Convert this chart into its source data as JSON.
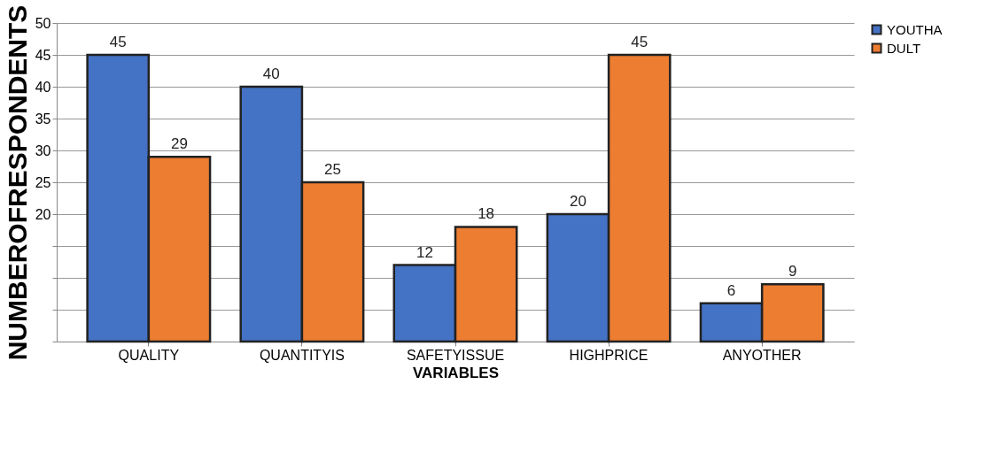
{
  "chart_data": {
    "type": "bar",
    "xlabel": "VARIABLES",
    "ylabel": "NUMBEROFRESPONDENTS",
    "categories": [
      "QUALITY",
      "QUANTITYIS",
      "SAFETYISSUE",
      "HIGHPRICE",
      "ANYOTHER"
    ],
    "series": [
      {
        "name": "YOUTHA",
        "color": "#4472c4",
        "values": [
          45,
          40,
          12,
          20,
          6
        ]
      },
      {
        "name": "DULT",
        "color": "#ed7d31",
        "values": [
          29,
          25,
          18,
          45,
          9
        ]
      }
    ],
    "ylim": [
      0,
      50
    ],
    "yticks": [
      {
        "value": 0,
        "label": null
      },
      {
        "value": 5,
        "label": null
      },
      {
        "value": 10,
        "label": null
      },
      {
        "value": 15,
        "label": null
      },
      20,
      25,
      30,
      35,
      40,
      45,
      50
    ],
    "grid": "y",
    "legend": "right",
    "data_labels": true
  }
}
